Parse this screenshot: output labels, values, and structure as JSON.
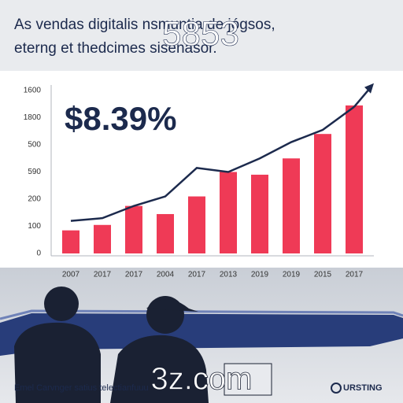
{
  "chart_data": {
    "type": "bar",
    "title_lines": [
      "As vendas digitalis nsmuntia de jógsos,",
      "eterng et thedcimes sisenasor."
    ],
    "headline": "$8.39%",
    "categories": [
      "2007",
      "2017",
      "2017",
      "2004",
      "2017",
      "2013",
      "2019",
      "2019",
      "2015",
      "2017"
    ],
    "values": [
      85,
      105,
      175,
      145,
      210,
      300,
      290,
      350,
      440,
      545
    ],
    "color": "#ef3a56",
    "trend": [
      120,
      130,
      175,
      210,
      315,
      300,
      350,
      410,
      455,
      540
    ],
    "trend_color": "#1c2a4d",
    "ylim": [
      0,
      600
    ],
    "y_axis_labels": [
      "1600",
      "1800",
      "500",
      "590",
      "200",
      "100",
      "0"
    ]
  },
  "watermarks": [
    "5853",
    "3z.com"
  ],
  "footer": {
    "caption": "Emel Carvnger satius telectianfuuu",
    "brand": "URSTING"
  }
}
